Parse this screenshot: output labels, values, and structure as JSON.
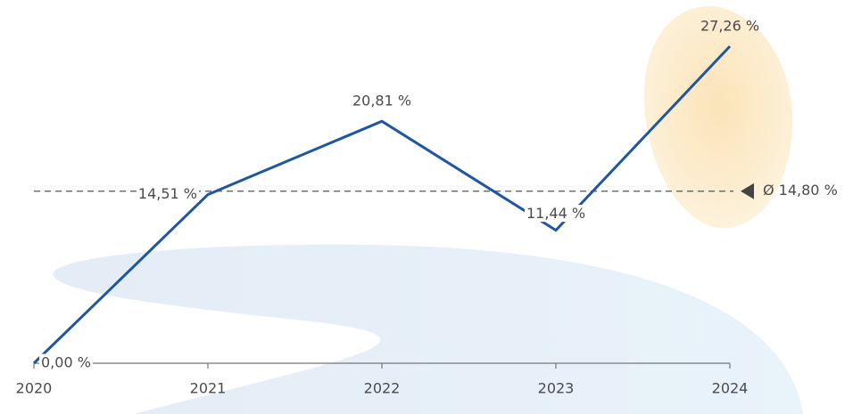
{
  "chart_data": {
    "type": "line",
    "categories": [
      "2020",
      "2021",
      "2022",
      "2023",
      "2024"
    ],
    "series": [
      {
        "color": "#1f56a0",
        "values": [
          0,
          14.51,
          20.81,
          11.44,
          27.26
        ],
        "value_labels": [
          "0,00 %",
          "14,51 %",
          "20,81 %",
          "11,44 %",
          "27,26 %"
        ]
      }
    ],
    "average": {
      "value": 14.8,
      "label": "Ø 14,80 %"
    }
  }
}
